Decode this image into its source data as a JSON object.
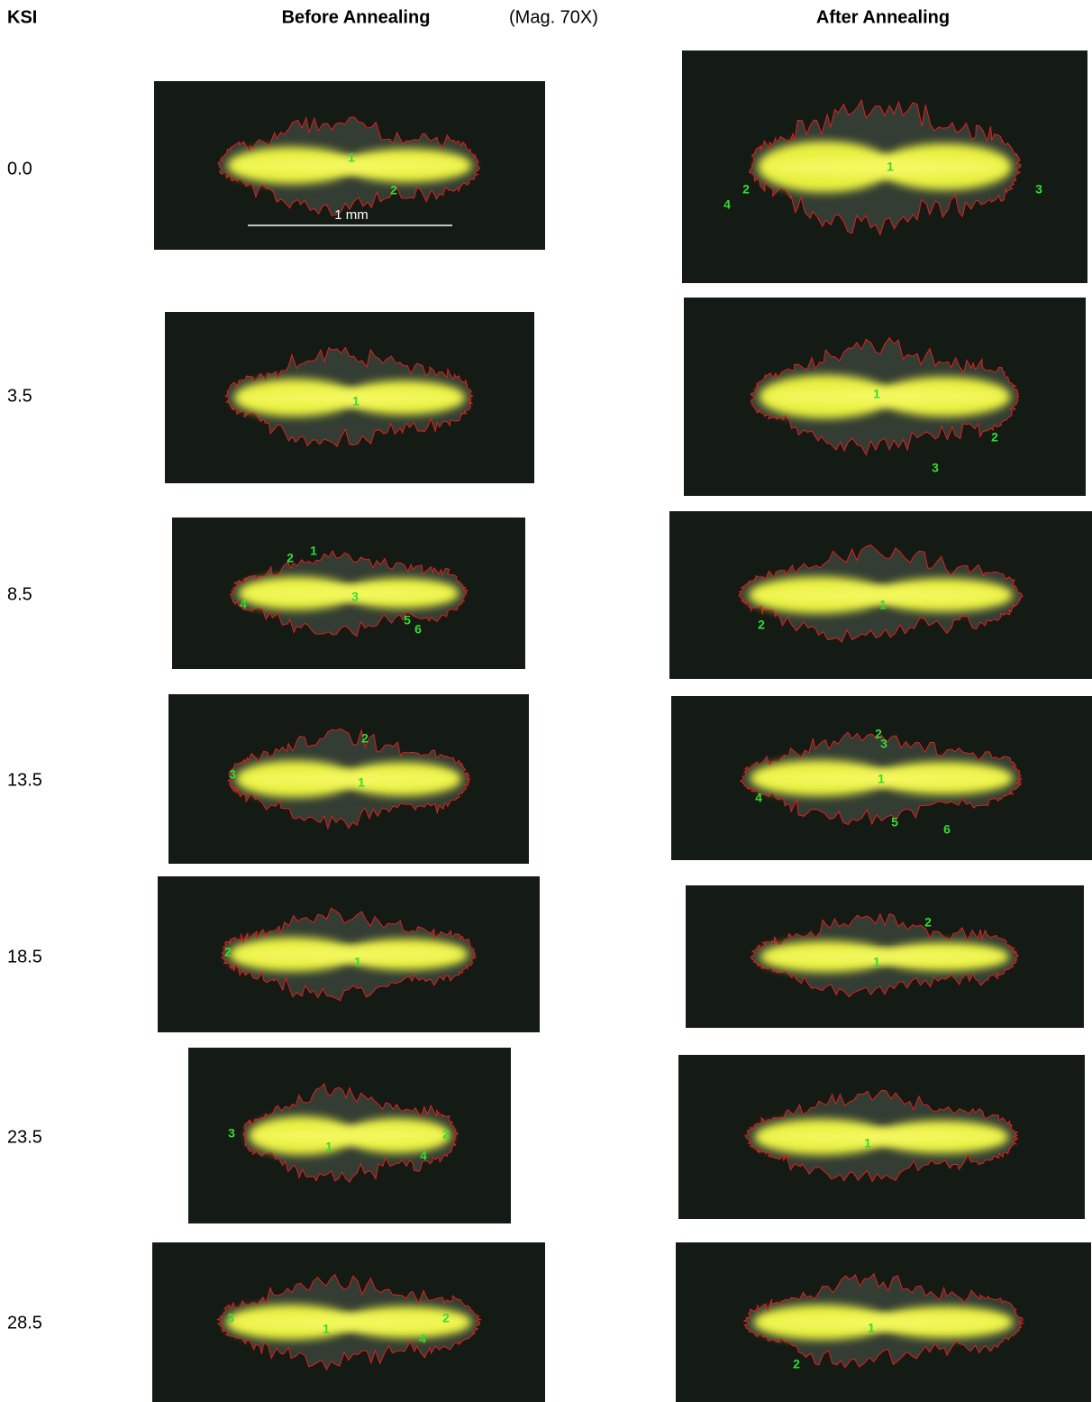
{
  "header": {
    "ksi": "KSI",
    "before": "Before Annealing",
    "magnification": "(Mag. 70X)",
    "after": "After Annealing"
  },
  "scale_bar": "1 mm",
  "rows": [
    {
      "ksi": "0.0",
      "before": {
        "labels": [
          "1",
          "2"
        ]
      },
      "after": {
        "labels": [
          "1",
          "2",
          "3",
          "4"
        ]
      }
    },
    {
      "ksi": "3.5",
      "before": {
        "labels": [
          "1"
        ]
      },
      "after": {
        "labels": [
          "1",
          "2",
          "3"
        ]
      }
    },
    {
      "ksi": "8.5",
      "before": {
        "labels": [
          "1",
          "2",
          "3",
          "4",
          "5",
          "6"
        ]
      },
      "after": {
        "labels": [
          "1",
          "2"
        ]
      }
    },
    {
      "ksi": "13.5",
      "before": {
        "labels": [
          "1",
          "2",
          "3"
        ]
      },
      "after": {
        "labels": [
          "1",
          "2",
          "3",
          "4",
          "5",
          "6"
        ]
      }
    },
    {
      "ksi": "18.5",
      "before": {
        "labels": [
          "1",
          "2"
        ]
      },
      "after": {
        "labels": [
          "1",
          "2"
        ]
      }
    },
    {
      "ksi": "23.5",
      "before": {
        "labels": [
          "1",
          "2",
          "3",
          "4"
        ]
      },
      "after": {
        "labels": [
          "1"
        ]
      }
    },
    {
      "ksi": "28.5",
      "before": {
        "labels": [
          "1",
          "2",
          "3",
          "4"
        ]
      },
      "after": {
        "labels": [
          "1",
          "2"
        ]
      }
    }
  ]
}
